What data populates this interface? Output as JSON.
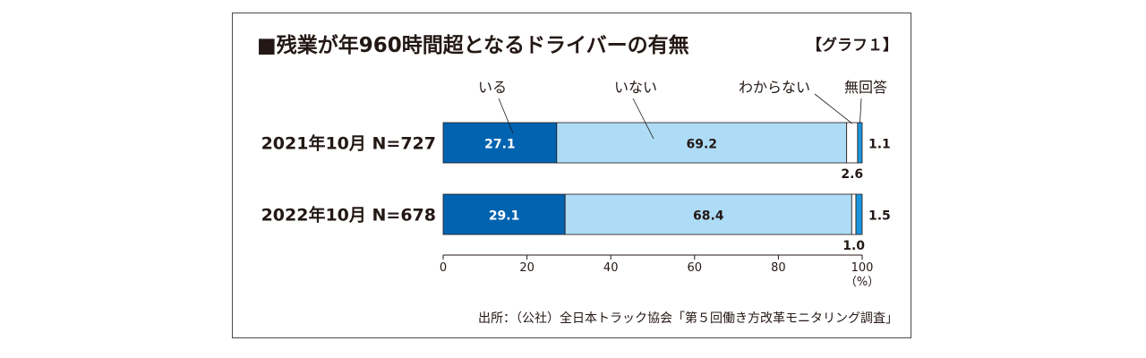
{
  "chart_data": {
    "type": "bar",
    "orientation": "horizontal",
    "stacked": true,
    "title": "■残業が年960時間超となるドライバーの有無",
    "graph_label": "【グラフ１】",
    "categories": [
      "2021年10月  N=727",
      "2022年10月  N=678"
    ],
    "series": [
      {
        "name": "いる",
        "values": [
          27.1,
          29.1
        ],
        "color": "#0063b0",
        "label_color": "#ffffff"
      },
      {
        "name": "いない",
        "values": [
          69.2,
          68.4
        ],
        "color": "#aedcf6",
        "label_color": "#231815"
      },
      {
        "name": "わからない",
        "values": [
          2.6,
          1.0
        ],
        "color": "#ffffff",
        "label_color": "#231815"
      },
      {
        "name": "無回答",
        "values": [
          1.1,
          1.5
        ],
        "color": "#1b95dc",
        "label_color": "#231815"
      }
    ],
    "value_labels": [
      [
        "27.1",
        "69.2",
        "2.6",
        "1.1"
      ],
      [
        "29.1",
        "68.4",
        "1.0",
        "1.5"
      ]
    ],
    "xlim": [
      0,
      100
    ],
    "xticks": [
      "0",
      "20",
      "40",
      "60",
      "80",
      "100"
    ],
    "xunit": "（%）",
    "grid": false,
    "legend": "labels above bars"
  },
  "source": "出所：（公社）全日本トラック協会「第５回働き方改革モニタリング調査」"
}
